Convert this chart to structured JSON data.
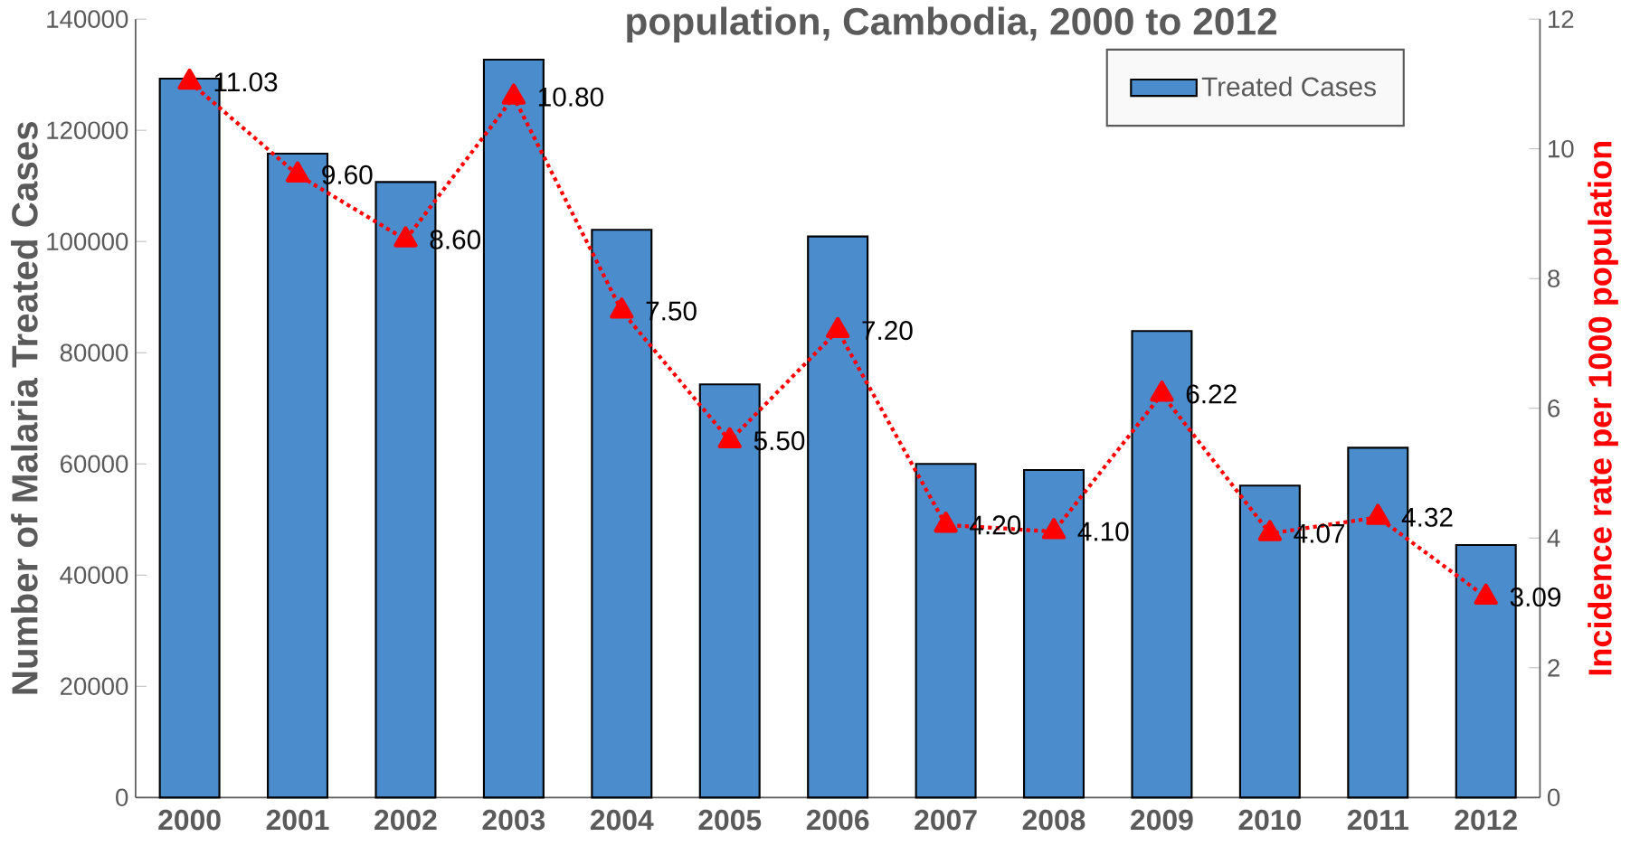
{
  "chart_data": {
    "type": "bar",
    "title": "population, Cambodia, 2000 to 2012",
    "ylabel": "Number of  Malaria Treated Cases",
    "y2label": "Incidence rate per 1000 population",
    "categories": [
      "2000",
      "2001",
      "2002",
      "2003",
      "2004",
      "2005",
      "2006",
      "2007",
      "2008",
      "2009",
      "2010",
      "2011",
      "2012"
    ],
    "series": [
      {
        "name": "Treated Cases",
        "color": "#4a8ccc",
        "values": [
          129300,
          115800,
          110700,
          132700,
          102100,
          74300,
          100900,
          60000,
          58900,
          83900,
          56100,
          62900,
          45400
        ]
      },
      {
        "type": "line",
        "axis": "y2",
        "color": "#ff0000",
        "marker": "triangle",
        "line_style": "dotted",
        "values": [
          11.03,
          9.6,
          8.6,
          10.8,
          7.5,
          5.5,
          7.2,
          4.2,
          4.1,
          6.22,
          4.07,
          4.32,
          3.09
        ],
        "value_labels": [
          "11.03",
          "9.60",
          "8.60",
          "10.80",
          "7.50",
          "5.50",
          "7.20",
          "4.20",
          "4.10",
          "6.22",
          "4.07",
          "4.32",
          "3.09"
        ]
      }
    ],
    "ylim": [
      0,
      140000
    ],
    "yticks": [
      0,
      20000,
      40000,
      60000,
      80000,
      100000,
      120000,
      140000
    ],
    "y2lim": [
      0,
      12
    ],
    "y2ticks": [
      0,
      2,
      4,
      6,
      8,
      10,
      12
    ],
    "legend": "top right"
  }
}
